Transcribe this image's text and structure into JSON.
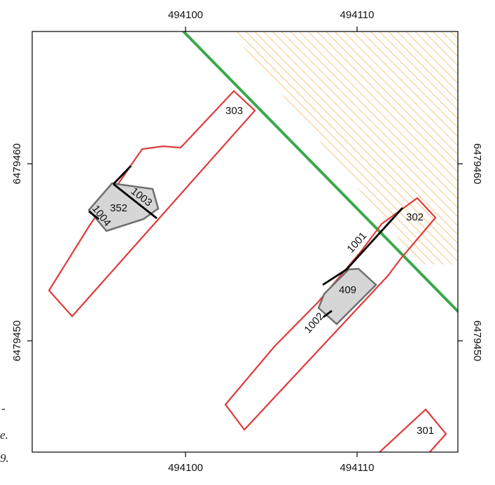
{
  "map": {
    "colors": {
      "plot_frame": "#000000",
      "red_outline": "#e03a3a",
      "green_line": "#3aa84a",
      "hatch": "#f4a640",
      "gray_fill": "#d6d6d6",
      "gray_stroke": "#6f6f6f",
      "black_line": "#000000"
    },
    "x_axis": {
      "top_ticks": [
        {
          "value": 494100,
          "label": "494100"
        },
        {
          "value": 494110,
          "label": "494110"
        }
      ],
      "bottom_ticks": [
        {
          "value": 494100,
          "label": "494100"
        },
        {
          "value": 494110,
          "label": "494110"
        }
      ]
    },
    "y_axis": {
      "left_ticks": [
        {
          "value": 6479460,
          "label": "6479460"
        },
        {
          "value": 6479450,
          "label": "6479450"
        }
      ],
      "right_ticks": [
        {
          "value": 6479460,
          "label": "6479460"
        },
        {
          "value": 6479450,
          "label": "6479450"
        }
      ]
    },
    "feature_labels": {
      "f303": "303",
      "f302": "302",
      "f301": "301",
      "f352": "352",
      "f409": "409",
      "f1001": "1001",
      "f1002": "1002",
      "f1003": "1003",
      "f1004": "1004"
    },
    "margin_fragments": [
      "-",
      "e.",
      "9."
    ]
  }
}
